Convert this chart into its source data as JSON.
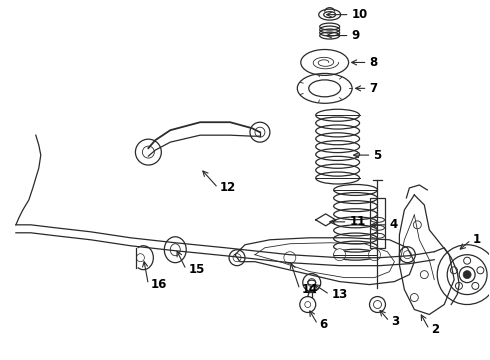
{
  "background_color": "#ffffff",
  "line_color": "#2a2a2a",
  "label_color": "#000000",
  "fig_width": 4.9,
  "fig_height": 3.6,
  "dpi": 100
}
